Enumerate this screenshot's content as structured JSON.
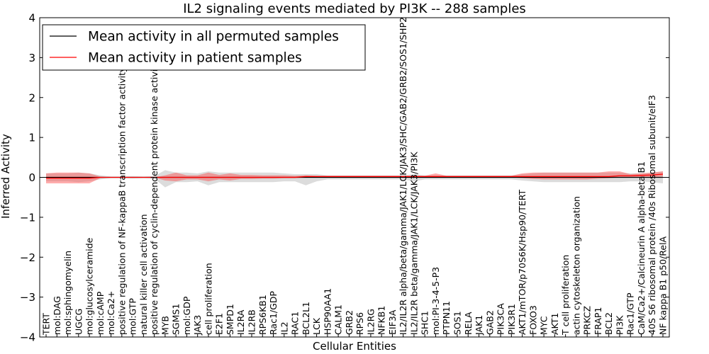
{
  "chart_data": {
    "type": "line",
    "title": "IL2 signaling events mediated by PI3K -- 288 samples",
    "xlabel": "Cellular Entities",
    "ylabel": "Inferred Activity",
    "ylim": [
      -4,
      4
    ],
    "yticks": [
      -4,
      -3,
      -2,
      -1,
      0,
      1,
      2,
      3,
      4
    ],
    "ytick_labels": [
      "−4",
      "−3",
      "−2",
      "−1",
      "0",
      "1",
      "2",
      "3",
      "4"
    ],
    "legend": {
      "placement": "top-left"
    },
    "categories": [
      "TERT",
      "mol:DAG",
      "mol:sphingomyelin",
      "UGCG",
      "mol:glucosylceramide",
      "mol:cAMP",
      "mol:Ca2+",
      "positive regulation of NF-kappaB transcription factor activity",
      "mol:GTP",
      "natural killer cell activation",
      "positive regulation of cyclin-dependent protein kinase activity",
      "MYB",
      "SGMS1",
      "mol:GDP",
      "JAK3",
      "cell proliferation",
      "E2F1",
      "SMPD1",
      "IL2RA",
      "IL2RB",
      "RPS6KB1",
      "Rac1/GDP",
      "IL2",
      "RAC1",
      "BCL2L1",
      "LCK",
      "HSP90AA1",
      "CALM1",
      "GRB2",
      "RPS6",
      "IL2RG",
      "NFKB1",
      "EIF3A",
      "IL2/IL2R alpha/beta/gamma/JAK1/LCK/JAK3/SHC/GAB2/GRB2/SOS1/SHP2",
      "IL2/IL2R beta/gamma/JAK1/LCK/JAK3/PI3K",
      "SHC1",
      "mol:PI-3-4-5-P3",
      "PTPN11",
      "SOS1",
      "RELA",
      "JAK1",
      "GAB2",
      "PIK3CA",
      "PIK3R1",
      "AKT1/mTOR/p70S6K/Hsp90/TERT",
      "FOXO3",
      "MYC",
      "AKT1",
      "T cell proliferation",
      "actin cytoskeleton organization",
      "PRKCZ",
      "FRAP1",
      "BCL2",
      "PI3K",
      "Rac1/GTP",
      "CaM/Ca2+/Calcineurin A alpha-beta B1",
      "40S S6 ribosomal protein /40s Ribosomal subunit/eIF3",
      "NF kappa B1 p50/RelA"
    ],
    "series": [
      {
        "name": "Mean activity in all permuted samples",
        "color": "#000000",
        "values": [
          0,
          0,
          0,
          0,
          0,
          0,
          0,
          0,
          0,
          0,
          0,
          0,
          0,
          0,
          0,
          0,
          0,
          0,
          0,
          0,
          0,
          0,
          0,
          0,
          0,
          0,
          0,
          0,
          0,
          0,
          0,
          0,
          0,
          0,
          0,
          0,
          0,
          0,
          0,
          0,
          0,
          0,
          0,
          0,
          0,
          0,
          0,
          0,
          0,
          0,
          0,
          0,
          0,
          0,
          0,
          0,
          0,
          0
        ],
        "lower": [
          -0.1,
          -0.1,
          -0.1,
          -0.12,
          -0.1,
          -0.05,
          -0.02,
          -0.02,
          -0.03,
          -0.02,
          -0.03,
          -0.25,
          -0.12,
          -0.12,
          -0.1,
          -0.2,
          -0.12,
          -0.12,
          -0.12,
          -0.12,
          -0.12,
          -0.12,
          -0.1,
          -0.1,
          -0.2,
          -0.1,
          -0.05,
          -0.05,
          -0.05,
          -0.05,
          -0.05,
          -0.05,
          -0.05,
          -0.05,
          -0.1,
          -0.05,
          -0.05,
          -0.05,
          -0.05,
          -0.05,
          -0.05,
          -0.05,
          -0.05,
          -0.05,
          -0.08,
          -0.1,
          -0.12,
          -0.12,
          -0.12,
          -0.12,
          -0.12,
          -0.12,
          -0.12,
          -0.12,
          -0.1,
          -0.1,
          -0.12,
          -0.15
        ],
        "upper": [
          0.1,
          0.1,
          0.1,
          0.12,
          0.1,
          0.05,
          0.02,
          0.02,
          0.03,
          0.02,
          0.03,
          0.18,
          0.12,
          0.12,
          0.1,
          0.15,
          0.12,
          0.12,
          0.12,
          0.12,
          0.12,
          0.12,
          0.1,
          0.08,
          0.08,
          0.08,
          0.05,
          0.05,
          0.05,
          0.05,
          0.05,
          0.05,
          0.05,
          0.05,
          0.08,
          0.05,
          0.05,
          0.05,
          0.05,
          0.05,
          0.05,
          0.05,
          0.05,
          0.05,
          0.08,
          0.1,
          0.12,
          0.12,
          0.12,
          0.12,
          0.12,
          0.12,
          0.12,
          0.12,
          0.1,
          0.1,
          0.12,
          0.15
        ]
      },
      {
        "name": "Mean activity in patient samples",
        "color": "#ff0000",
        "values": [
          -0.02,
          -0.02,
          -0.02,
          -0.02,
          -0.02,
          0,
          0,
          0,
          0,
          0,
          0,
          0,
          0,
          0,
          0,
          0,
          0,
          0,
          0,
          0,
          0,
          0,
          0,
          0,
          0.02,
          0.02,
          0.02,
          0.02,
          0.02,
          0.02,
          0.02,
          0.02,
          0.02,
          0.02,
          0.02,
          0.02,
          0.02,
          0.02,
          0.02,
          0.02,
          0.02,
          0.02,
          0.02,
          0.02,
          0.02,
          0.02,
          0.02,
          0.02,
          0.02,
          0.02,
          0.02,
          0.02,
          0.02,
          0.04,
          0.04,
          0.05,
          0.06,
          0.08
        ],
        "lower": [
          -0.15,
          -0.15,
          -0.15,
          -0.15,
          -0.15,
          -0.02,
          0,
          0,
          0,
          0,
          0,
          -0.08,
          -0.1,
          -0.05,
          -0.05,
          -0.1,
          -0.05,
          -0.08,
          -0.04,
          -0.04,
          -0.03,
          -0.03,
          -0.02,
          -0.02,
          0,
          0,
          0,
          0,
          0,
          0,
          0,
          0,
          0,
          0,
          0,
          0,
          0,
          0,
          0,
          0,
          0,
          0,
          0,
          0,
          -0.02,
          -0.04,
          -0.05,
          -0.05,
          -0.05,
          -0.05,
          -0.05,
          -0.03,
          -0.02,
          0,
          0.01,
          0.01,
          0.01,
          0.02
        ],
        "upper": [
          0.1,
          0.12,
          0.12,
          0.12,
          0.1,
          0.02,
          0,
          0,
          0,
          0,
          0,
          0.05,
          0.12,
          0.05,
          0.05,
          0.12,
          0.06,
          0.1,
          0.06,
          0.06,
          0.05,
          0.05,
          0.05,
          0.04,
          0.05,
          0.04,
          0.04,
          0.04,
          0.04,
          0.04,
          0.04,
          0.04,
          0.04,
          0.04,
          0.04,
          0.04,
          0.1,
          0.04,
          0.04,
          0.04,
          0.04,
          0.04,
          0.04,
          0.04,
          0.1,
          0.12,
          0.12,
          0.12,
          0.12,
          0.12,
          0.12,
          0.12,
          0.15,
          0.15,
          0.08,
          0.1,
          0.12,
          0.15
        ]
      }
    ]
  }
}
